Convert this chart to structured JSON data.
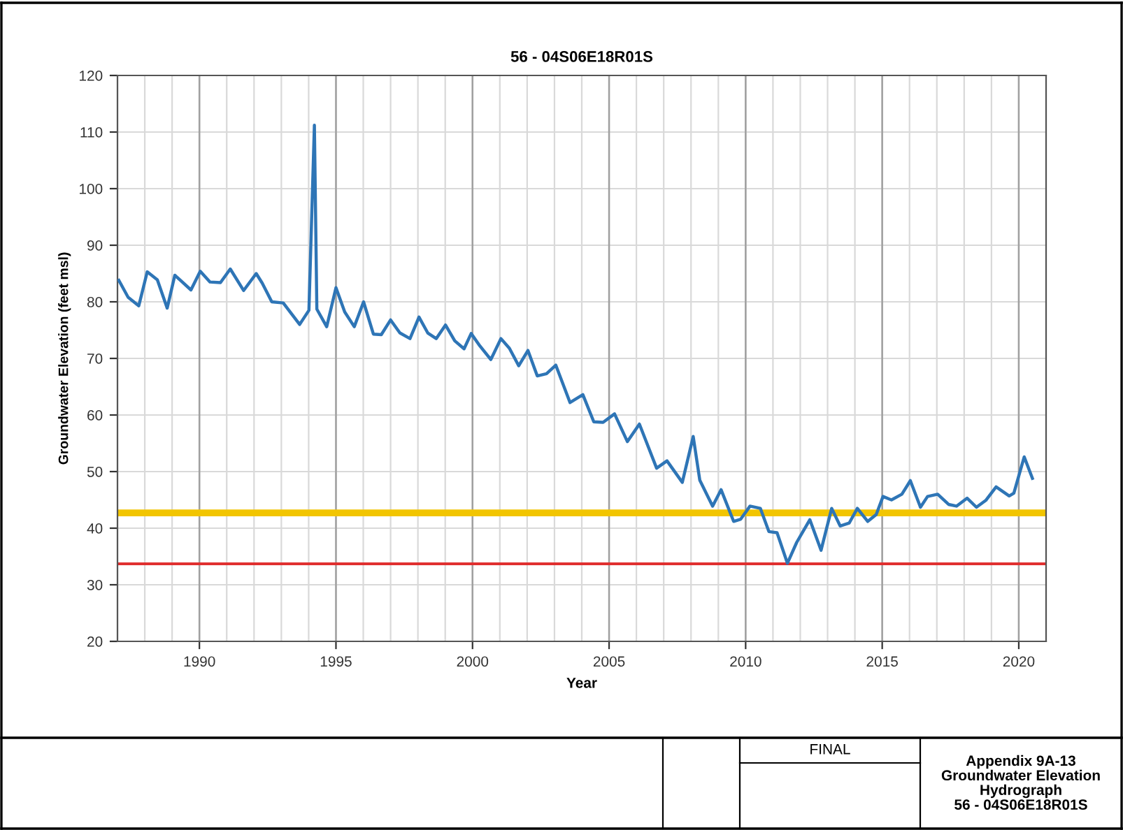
{
  "chart_data": {
    "type": "line",
    "title": "56 - 04S06E18R01S",
    "xlabel": "Year",
    "ylabel": "Groundwater Elevation (feet msl)",
    "series": [
      {
        "color": "#2e75b6",
        "x": [
          1987.05,
          1987.39,
          1987.78,
          1988.09,
          1988.46,
          1988.82,
          1989.1,
          1989.69,
          1990.03,
          1990.39,
          1990.77,
          1991.13,
          1991.62,
          1992.08,
          1992.3,
          1992.65,
          1993.07,
          1993.67,
          1994.01,
          1994.21,
          1994.3,
          1994.66,
          1995.0,
          1995.32,
          1995.67,
          1996.01,
          1996.37,
          1996.66,
          1997.0,
          1997.34,
          1997.71,
          1998.04,
          1998.36,
          1998.67,
          1999.01,
          1999.35,
          1999.69,
          1999.95,
          2000.27,
          2000.67,
          2001.04,
          2001.35,
          2001.69,
          2002.03,
          2002.37,
          2002.71,
          2003.05,
          2003.57,
          2004.04,
          2004.44,
          2004.78,
          2005.2,
          2005.67,
          2006.11,
          2006.74,
          2007.12,
          2007.68,
          2008.08,
          2008.32,
          2008.79,
          2009.1,
          2009.56,
          2009.82,
          2010.16,
          2010.54,
          2010.85,
          2011.15,
          2011.53,
          2011.87,
          2012.35,
          2012.76,
          2013.15,
          2013.46,
          2013.79,
          2014.09,
          2014.47,
          2014.78,
          2015.03,
          2015.34,
          2015.72,
          2016.03,
          2016.4,
          2016.66,
          2017.03,
          2017.43,
          2017.72,
          2018.11,
          2018.45,
          2018.79,
          2019.17,
          2019.65,
          2019.82,
          2020.2,
          2020.5
        ],
        "values": [
          83.8,
          80.8,
          79.3,
          85.3,
          83.9,
          78.9,
          84.7,
          82.1,
          85.4,
          83.5,
          83.4,
          85.8,
          82.0,
          85.0,
          83.3,
          80.0,
          79.8,
          76.0,
          78.5,
          111.2,
          78.7,
          75.6,
          82.5,
          78.2,
          75.6,
          80.0,
          74.3,
          74.2,
          76.8,
          74.5,
          73.5,
          77.3,
          74.5,
          73.5,
          75.9,
          73.1,
          71.7,
          74.4,
          72.2,
          69.8,
          73.5,
          71.8,
          68.7,
          71.4,
          66.9,
          67.3,
          68.8,
          62.2,
          63.6,
          58.8,
          58.7,
          60.2,
          55.3,
          58.4,
          50.6,
          51.9,
          48.1,
          56.2,
          48.5,
          43.9,
          46.8,
          41.2,
          41.6,
          43.9,
          43.5,
          39.4,
          39.2,
          33.8,
          37.5,
          41.5,
          36.1,
          43.5,
          40.4,
          40.9,
          43.5,
          41.2,
          42.4,
          45.6,
          45.0,
          46.0,
          48.4,
          43.7,
          45.6,
          46.0,
          44.2,
          43.9,
          45.3,
          43.7,
          44.9,
          47.3,
          45.7,
          46.2,
          52.6,
          48.8
        ]
      }
    ],
    "xlim": [
      1987,
      2021
    ],
    "ylim": [
      20,
      120
    ],
    "xticks": [
      {
        "value": 1987,
        "label": null
      },
      {
        "value": 1988,
        "label": null
      },
      {
        "value": 1989,
        "label": null
      },
      1990,
      {
        "value": 1991,
        "label": null
      },
      {
        "value": 1992,
        "label": null
      },
      {
        "value": 1993,
        "label": null
      },
      {
        "value": 1994,
        "label": null
      },
      1995,
      {
        "value": 1996,
        "label": null
      },
      {
        "value": 1997,
        "label": null
      },
      {
        "value": 1998,
        "label": null
      },
      {
        "value": 1999,
        "label": null
      },
      2000,
      {
        "value": 2001,
        "label": null
      },
      {
        "value": 2002,
        "label": null
      },
      {
        "value": 2003,
        "label": null
      },
      {
        "value": 2004,
        "label": null
      },
      2005,
      {
        "value": 2006,
        "label": null
      },
      {
        "value": 2007,
        "label": null
      },
      {
        "value": 2008,
        "label": null
      },
      {
        "value": 2009,
        "label": null
      },
      2010,
      {
        "value": 2011,
        "label": null
      },
      {
        "value": 2012,
        "label": null
      },
      {
        "value": 2013,
        "label": null
      },
      {
        "value": 2014,
        "label": null
      },
      2015,
      {
        "value": 2016,
        "label": null
      },
      {
        "value": 2017,
        "label": null
      },
      {
        "value": 2018,
        "label": null
      },
      {
        "value": 2019,
        "label": null
      },
      2020,
      {
        "value": 2021,
        "label": null
      }
    ],
    "yticks": [
      20,
      30,
      40,
      50,
      60,
      70,
      80,
      90,
      100,
      110,
      120
    ],
    "ref_lines": [
      {
        "axis": "y",
        "value": 42.7,
        "color": "#f2c500"
      },
      {
        "axis": "y",
        "value": 33.7,
        "color": "#e03030"
      }
    ],
    "grid": true,
    "legend": false,
    "marker": "none",
    "line_style": "solid",
    "annotations": [
      "FINAL",
      "Appendix 9A-13\nGroundwater Elevation\nHydrograph\n56 - 04S06E18R01S"
    ]
  }
}
